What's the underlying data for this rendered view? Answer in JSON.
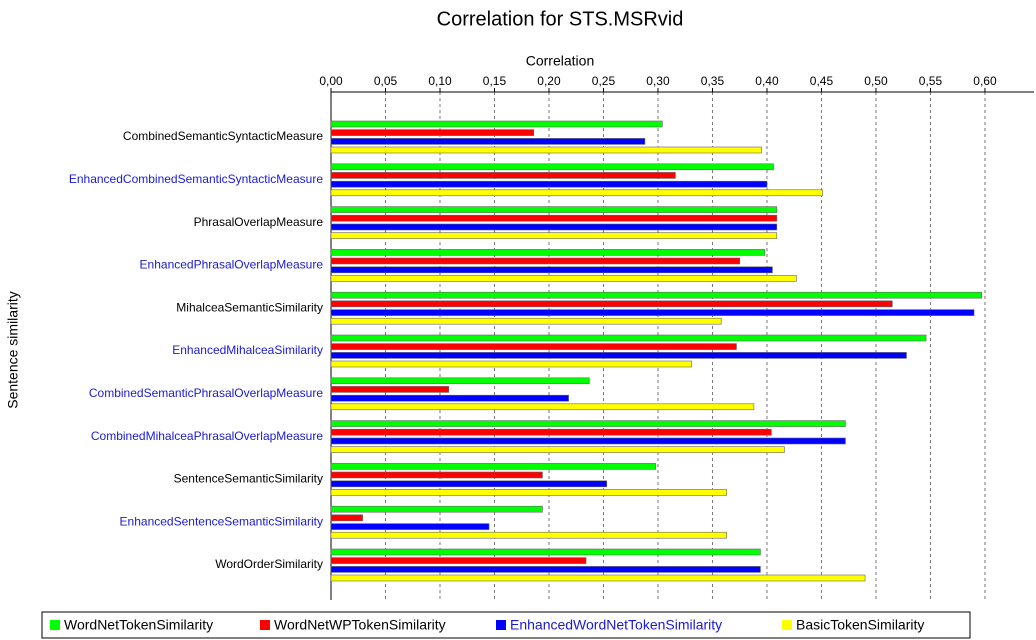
{
  "chart_data": {
    "type": "hbar",
    "title": "Correlation for STS.MSRvid",
    "x_label": "Correlation",
    "y_label": "Sentence similarity",
    "categories": [
      "CombinedSemanticSyntacticMeasure",
      "EnhancedCombinedSemanticSyntacticMeasure",
      "PhrasalOverlapMeasure",
      "EnhancedPhrasalOverlapMeasure",
      "MihalceaSemanticSimilarity",
      "EnhancedMihalceaSimilarity",
      "CombinedSemanticPhrasalOverlapMeasure",
      "CombinedMihalceaPhrasalOverlapMeasure",
      "SentenceSemanticSimilarity",
      "EnhancedSentenceSemanticSimilarity",
      "WordOrderSimilarity"
    ],
    "category_colors": [
      "#000000",
      "#1a1ad0",
      "#000000",
      "#1a1ad0",
      "#000000",
      "#1a1ad0",
      "#1a1ad0",
      "#1a1ad0",
      "#000000",
      "#1a1ad0",
      "#000000"
    ],
    "series": [
      {
        "name": "WordNetTokenSimilarity",
        "color": "#00ff00",
        "text_color": "#000000",
        "values": [
          0.304,
          0.406,
          0.409,
          0.398,
          0.597,
          0.546,
          0.237,
          0.472,
          0.298,
          0.194,
          0.394
        ]
      },
      {
        "name": "WordNetWPTokenSimilarity",
        "color": "#ff0000",
        "text_color": "#000000",
        "values": [
          0.186,
          0.316,
          0.409,
          0.375,
          0.515,
          0.372,
          0.108,
          0.404,
          0.194,
          0.029,
          0.234
        ]
      },
      {
        "name": "EnhancedWordNetTokenSimilarity",
        "color": "#0000ff",
        "text_color": "#1a1ad0",
        "values": [
          0.288,
          0.4,
          0.409,
          0.405,
          0.59,
          0.528,
          0.218,
          0.472,
          0.253,
          0.145,
          0.394
        ]
      },
      {
        "name": "BasicTokenSimilarity",
        "color": "#ffff00",
        "text_color": "#000000",
        "values": [
          0.395,
          0.451,
          0.409,
          0.427,
          0.358,
          0.331,
          0.388,
          0.416,
          0.363,
          0.363,
          0.49
        ]
      }
    ],
    "xlim": [
      0,
      0.645
    ],
    "xticks": [
      {
        "value": 0,
        "label": "0,00"
      },
      {
        "value": 0.05,
        "label": "0,05"
      },
      {
        "value": 0.1,
        "label": "0,10"
      },
      {
        "value": 0.15,
        "label": "0,15"
      },
      {
        "value": 0.2,
        "label": "0,20"
      },
      {
        "value": 0.25,
        "label": "0,25"
      },
      {
        "value": 0.3,
        "label": "0,30"
      },
      {
        "value": 0.35,
        "label": "0,35"
      },
      {
        "value": 0.4,
        "label": "0,40"
      },
      {
        "value": 0.45,
        "label": "0,45"
      },
      {
        "value": 0.5,
        "label": "0,50"
      },
      {
        "value": 0.55,
        "label": "0,55"
      },
      {
        "value": 0.6,
        "label": "0,60"
      }
    ],
    "grid": true,
    "legend": "bottom"
  }
}
